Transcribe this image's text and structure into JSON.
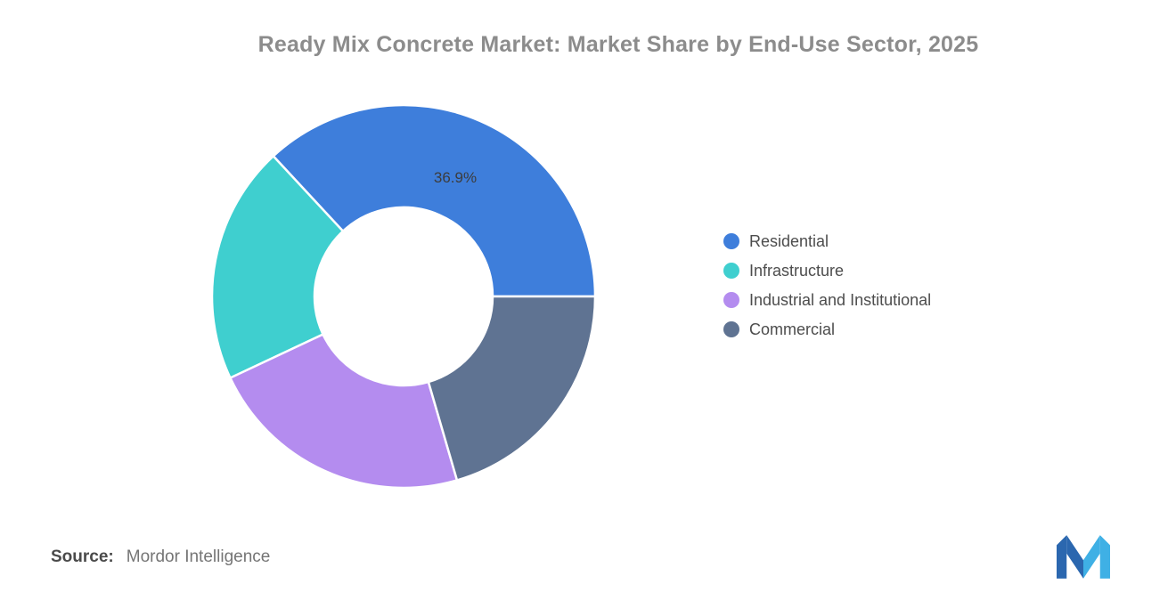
{
  "title": "Ready Mix Concrete Market: Market Share by End-Use Sector, 2025",
  "source": {
    "label": "Source:",
    "value": "Mordor Intelligence"
  },
  "logo": {
    "name": "Mordor Intelligence",
    "colors": [
      "#2B67AF",
      "#3FB0E5"
    ]
  },
  "chart_data": {
    "type": "pie",
    "subtype": "donut",
    "title": "Ready Mix Concrete Market: Market Share by End-Use Sector, 2025",
    "categories": [
      "Residential",
      "Infrastructure",
      "Industrial and Institutional",
      "Commercial"
    ],
    "values": [
      36.9,
      20.1,
      22.5,
      20.5
    ],
    "unit": "%",
    "colors": [
      "#3E7EDB",
      "#3FCFCF",
      "#B48CEF",
      "#5F7392"
    ],
    "data_label": {
      "text": "36.9%",
      "slice_index": 0
    },
    "donut_hole_ratio": 0.465,
    "start_angle_deg": 90,
    "direction": "counterclockwise",
    "legend_position": "right",
    "grid": false
  }
}
